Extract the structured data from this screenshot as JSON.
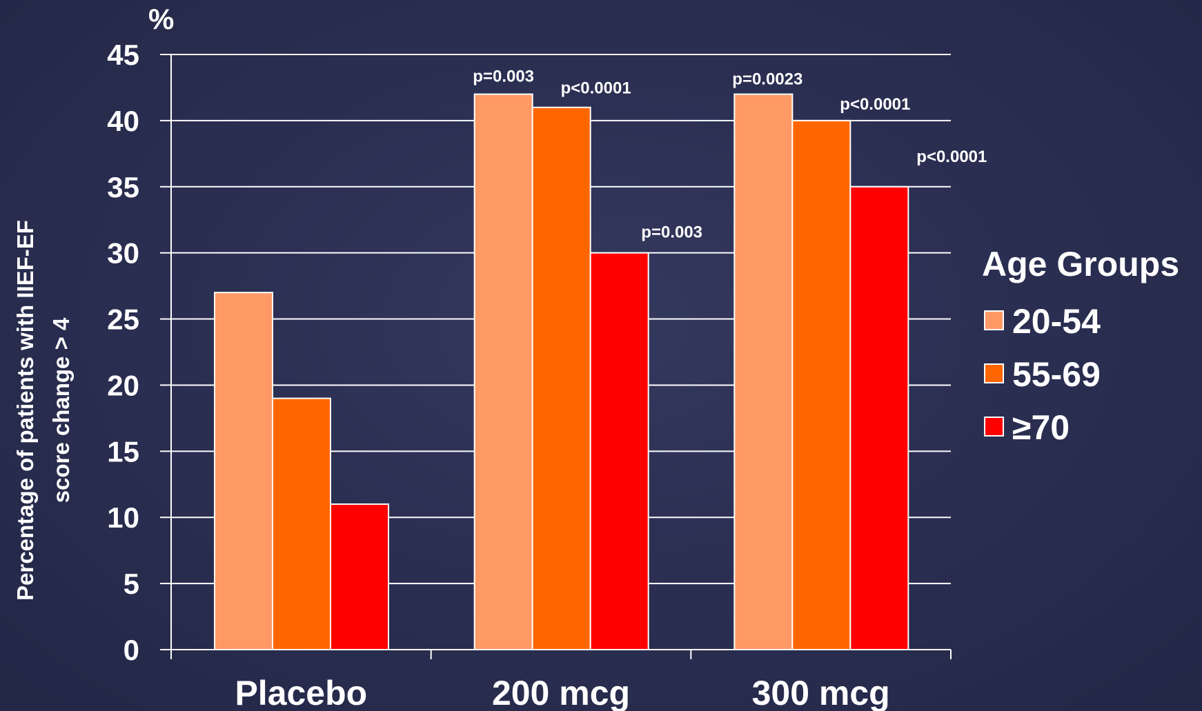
{
  "chart_data": {
    "type": "bar",
    "unit_label": "%",
    "ylabel_line1": "Percentage of patients with IIEF-EF",
    "ylabel_line2": "score change > 4",
    "categories": [
      "Placebo",
      "200 mcg",
      "300 mcg"
    ],
    "series": [
      {
        "name": "20-54",
        "color": "#ff9966",
        "values": [
          27,
          42,
          42
        ]
      },
      {
        "name": "55-69",
        "color": "#ff6600",
        "values": [
          19,
          41,
          40
        ]
      },
      {
        "name": "≥70",
        "color": "#ff0000",
        "values": [
          11,
          30,
          35
        ]
      }
    ],
    "annotations": [
      {
        "category": 1,
        "series": 0,
        "text": "p=0.003"
      },
      {
        "category": 1,
        "series": 1,
        "text": "p<0.0001"
      },
      {
        "category": 1,
        "series": 2,
        "text": "p=0.003"
      },
      {
        "category": 2,
        "series": 0,
        "text": "p=0.0023"
      },
      {
        "category": 2,
        "series": 1,
        "text": "p<0.0001"
      },
      {
        "category": 2,
        "series": 2,
        "text": "p<0.0001"
      }
    ],
    "ylim": [
      0,
      45
    ],
    "yticks": [
      0,
      5,
      10,
      15,
      20,
      25,
      30,
      35,
      40,
      45
    ],
    "grid": true,
    "legend": {
      "title": "Age Groups",
      "position": "right"
    }
  }
}
